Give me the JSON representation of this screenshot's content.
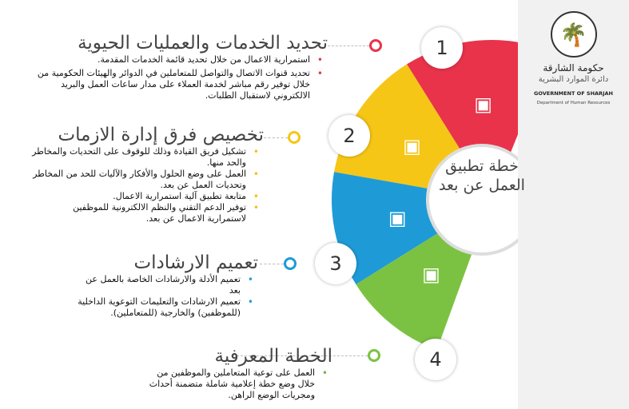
{
  "center_title": "خطة تطبيق العمل عن بعد",
  "colors": {
    "red": "#e8334a",
    "yellow": "#f6c616",
    "blue": "#1e9bd7",
    "green": "#7cc242"
  },
  "sections": [
    {
      "number": "1",
      "icon": "gears-hand-icon",
      "title": "تحديد  الخدمات والعمليات الحيوية",
      "bullets": [
        "استمرارية الاعمال من خلال تحديد قائمة الخدمات المقدمة.",
        "تحديد قنوات الاتصال والتواصل للمتعاملين في الدوائر والهيئات الحكومية من خلال توفير رقم مباشر لخدمة العملاء على مدار ساعات العمل والبريد الالكتروني لاستقبال الطلبات."
      ]
    },
    {
      "number": "2",
      "icon": "team-icon",
      "title": "تخصيص فرق إدارة الازمات",
      "bullets": [
        "تشكيل فريق القيادة وذلك للوقوف على التحديات والمخاطر والحد منها.",
        "العمل على وضع الحلول والأفكار والآليات للحد من المخاطر وتحديات العمل عن بعد.",
        "متابعة تطبيق آلية استمرارية الاعمال.",
        "توفير الدعم التقني والنظم الالكترونية للموظفين لاستمرارية الاعمال عن بعد."
      ]
    },
    {
      "number": "3",
      "icon": "guide-book-icon",
      "title": "تعميم الارشادات",
      "bullets": [
        "تعميم الأدلة والارشادات الخاصة بالعمل عن بعد",
        "تعميم الارشادات والتعليمات التوعوية الداخلية (للموظفين) والخارجية (للمتعاملين)."
      ]
    },
    {
      "number": "4",
      "icon": "megaphone-people-icon",
      "title": "الخطة المعرفية",
      "bullets": [
        "العمل على توعية المتعاملين والموظفين من خلال وضع خطة إعلامية شاملة متضمنة أحداث ومجريات الوضع الراهن."
      ]
    }
  ],
  "logo": {
    "arabic_name": "حكومة الشارقة",
    "arabic_dept": "دائرة الموارد البشرية",
    "english_name": "GOVERNMENT OF SHARJAH",
    "english_dept": "Department of Human Resources"
  }
}
